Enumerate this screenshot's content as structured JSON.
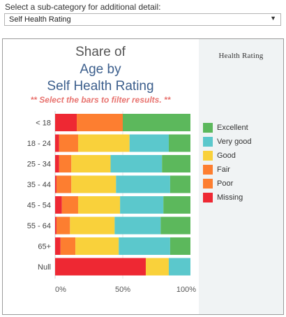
{
  "selector": {
    "label": "Select a sub-category for additional detail:",
    "value": "Self Health Rating",
    "arrow": "▼"
  },
  "title": {
    "line1": "Share of",
    "line2": "Age by",
    "line3": "Self Health Rating",
    "subtitle": "** Select the bars to filter results. **"
  },
  "legend": {
    "title": "Health  Rating",
    "items": [
      {
        "label": "Excellent",
        "color": "#5cb85c"
      },
      {
        "label": "Very good",
        "color": "#5bc8cc"
      },
      {
        "label": "Good",
        "color": "#f9d13b"
      },
      {
        "label": "Fair",
        "color": "#fd7e30"
      },
      {
        "label": "Poor",
        "color": "#fd7e30"
      },
      {
        "label": "Missing",
        "color": "#ee2833"
      }
    ]
  },
  "chart_data": {
    "type": "bar",
    "orientation": "horizontal",
    "stacked": "100%",
    "categories": [
      "< 18",
      "18 - 24",
      "25 - 34",
      "35 - 44",
      "45 - 54",
      "55 - 64",
      "65+",
      "Null"
    ],
    "series": [
      {
        "name": "Missing",
        "color": "#ee2833",
        "values": [
          16,
          3,
          3,
          1,
          5,
          1,
          4,
          67
        ]
      },
      {
        "name": "Poor",
        "color": "#fd7e30",
        "values": [
          0,
          0,
          0,
          0,
          0,
          0,
          0,
          0
        ]
      },
      {
        "name": "Fair",
        "color": "#fd7e30",
        "values": [
          34,
          14,
          9,
          11,
          12,
          10,
          11,
          0
        ]
      },
      {
        "name": "Good",
        "color": "#f9d13b",
        "values": [
          0,
          38,
          29,
          33,
          31,
          33,
          32,
          17
        ]
      },
      {
        "name": "Very good",
        "color": "#5bc8cc",
        "values": [
          0,
          29,
          38,
          40,
          32,
          34,
          38,
          16
        ]
      },
      {
        "name": "Excellent",
        "color": "#5cb85c",
        "values": [
          50,
          16,
          21,
          15,
          20,
          22,
          15,
          0
        ]
      }
    ],
    "x_ticks": [
      "0%",
      "50%",
      "100%"
    ],
    "xlim": [
      0,
      100
    ],
    "grid": true,
    "legend_position": "right"
  }
}
